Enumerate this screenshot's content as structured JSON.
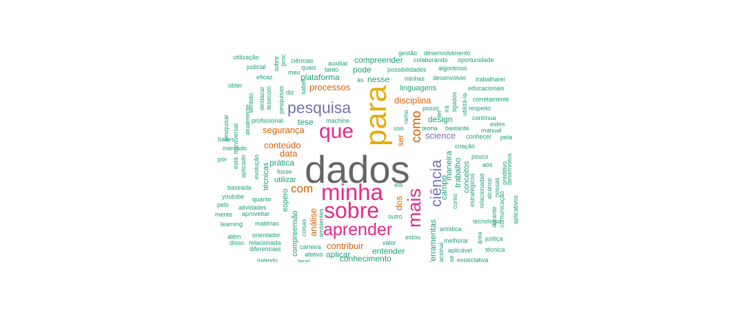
{
  "colors": {
    "teal": "#1b9e77",
    "orange": "#d95f02",
    "purple": "#7570b3",
    "pink": "#e7298a",
    "gold": "#e6ab02",
    "grey": "#666666"
  },
  "words": [
    {
      "text": "dados",
      "color": "grey"
    },
    {
      "text": "para",
      "color": "gold"
    },
    {
      "text": "minha",
      "color": "pink"
    },
    {
      "text": "sobre",
      "color": "pink"
    },
    {
      "text": "que",
      "color": "pink"
    },
    {
      "text": "aprender",
      "color": "pink"
    },
    {
      "text": "mais",
      "color": "pink"
    },
    {
      "text": "pesquisa",
      "color": "purple"
    },
    {
      "text": "ciência",
      "color": "purple"
    },
    {
      "text": "como",
      "color": "orange"
    },
    {
      "text": "com",
      "color": "orange"
    },
    {
      "text": "disciplina",
      "color": "orange"
    },
    {
      "text": "segurança",
      "color": "orange"
    },
    {
      "text": "processos",
      "color": "orange"
    },
    {
      "text": "conteúdo",
      "color": "orange"
    },
    {
      "text": "análise",
      "color": "orange"
    },
    {
      "text": "data",
      "color": "orange"
    },
    {
      "text": "dos",
      "color": "orange"
    },
    {
      "text": "contribuir",
      "color": "orange"
    },
    {
      "text": "ser",
      "color": "orange"
    },
    {
      "text": "science",
      "color": "purple"
    },
    {
      "text": "plataforma",
      "color": "teal"
    },
    {
      "text": "compreender",
      "color": "teal"
    },
    {
      "text": "pode",
      "color": "teal"
    },
    {
      "text": "nesse",
      "color": "teal"
    },
    {
      "text": "linguagens",
      "color": "teal"
    },
    {
      "text": "design",
      "color": "teal"
    },
    {
      "text": "tese",
      "color": "teal"
    },
    {
      "text": "prática",
      "color": "teal"
    },
    {
      "text": "utilizar",
      "color": "teal"
    },
    {
      "text": "técnicas",
      "color": "teal"
    },
    {
      "text": "espero",
      "color": "teal"
    },
    {
      "text": "compreensão",
      "color": "teal"
    },
    {
      "text": "aplicar",
      "color": "teal"
    },
    {
      "text": "entender",
      "color": "teal"
    },
    {
      "text": "conhecimento",
      "color": "teal"
    },
    {
      "text": "ferramentas",
      "color": "teal"
    },
    {
      "text": "trabalho",
      "color": "teal"
    },
    {
      "text": "maneira",
      "color": "teal"
    },
    {
      "text": "campo",
      "color": "teal"
    },
    {
      "text": "conceitos",
      "color": "teal"
    },
    {
      "text": "curso",
      "color": "teal"
    },
    {
      "text": "utilização",
      "color": "teal"
    },
    {
      "text": "judicial",
      "color": "teal"
    },
    {
      "text": "obter",
      "color": "teal"
    },
    {
      "text": "eficaz",
      "color": "teal"
    },
    {
      "text": "ciências",
      "color": "teal"
    },
    {
      "text": "auxiliar",
      "color": "teal"
    },
    {
      "text": "quais",
      "color": "teal"
    },
    {
      "text": "tanto",
      "color": "teal"
    },
    {
      "text": "colaborando",
      "color": "teal"
    },
    {
      "text": "oportunidade",
      "color": "teal"
    },
    {
      "text": "possibilidades",
      "color": "teal"
    },
    {
      "text": "algoritmos",
      "color": "teal"
    },
    {
      "text": "meu",
      "color": "teal"
    },
    {
      "text": "às",
      "color": "teal"
    },
    {
      "text": "minhas",
      "color": "teal"
    },
    {
      "text": "desenvolver",
      "color": "teal"
    },
    {
      "text": "trabalharei",
      "color": "teal"
    },
    {
      "text": "educacionais",
      "color": "teal"
    },
    {
      "text": "corretamente",
      "color": "teal"
    },
    {
      "text": "respeito",
      "color": "teal"
    },
    {
      "text": "contínua",
      "color": "teal"
    },
    {
      "text": "estes",
      "color": "teal"
    },
    {
      "text": "manual",
      "color": "teal"
    },
    {
      "text": "pela",
      "color": "teal"
    },
    {
      "text": "conhecer",
      "color": "teal"
    },
    {
      "text": "bastante",
      "color": "teal"
    },
    {
      "text": "teoria",
      "color": "teal"
    },
    {
      "text": "posso",
      "color": "teal"
    },
    {
      "text": "uso",
      "color": "teal"
    },
    {
      "text": "machine",
      "color": "teal"
    },
    {
      "text": "diz",
      "color": "teal"
    },
    {
      "text": "profissional",
      "color": "teal"
    },
    {
      "text": "bases",
      "color": "teal"
    },
    {
      "text": "mercado",
      "color": "teal"
    },
    {
      "text": "por",
      "color": "teal"
    },
    {
      "text": "fosse",
      "color": "teal"
    },
    {
      "text": "baseada",
      "color": "teal"
    },
    {
      "text": "youtube",
      "color": "teal"
    },
    {
      "text": "quanto",
      "color": "teal"
    },
    {
      "text": "pelo",
      "color": "teal"
    },
    {
      "text": "atividades",
      "color": "teal"
    },
    {
      "text": "mente",
      "color": "teal"
    },
    {
      "text": "aproveitar",
      "color": "teal"
    },
    {
      "text": "learning",
      "color": "teal"
    },
    {
      "text": "matérias",
      "color": "teal"
    },
    {
      "text": "orientador",
      "color": "teal"
    },
    {
      "text": "além",
      "color": "teal"
    },
    {
      "text": "disso",
      "color": "teal"
    },
    {
      "text": "relacionada",
      "color": "teal"
    },
    {
      "text": "diferenciais",
      "color": "teal"
    },
    {
      "text": "método",
      "color": "teal"
    },
    {
      "text": "carreira",
      "color": "teal"
    },
    {
      "text": "afetivo",
      "color": "teal"
    },
    {
      "text": "valor",
      "color": "teal"
    },
    {
      "text": "estou",
      "color": "teal"
    },
    {
      "text": "melhorar",
      "color": "teal"
    },
    {
      "text": "aplicável",
      "color": "teal"
    },
    {
      "text": "justiça",
      "color": "teal"
    },
    {
      "text": "técnica",
      "color": "teal"
    },
    {
      "text": "expectativa",
      "color": "teal"
    },
    {
      "text": "artística",
      "color": "teal"
    },
    {
      "text": "tecnologia",
      "color": "teal"
    },
    {
      "text": "criação",
      "color": "teal"
    },
    {
      "text": "pouco",
      "color": "teal"
    },
    {
      "text": "aos",
      "color": "teal"
    },
    {
      "text": "outro",
      "color": "teal"
    },
    {
      "text": "ela",
      "color": "teal"
    },
    {
      "text": "pesquisar",
      "color": "teal"
    },
    {
      "text": "transversal",
      "color": "teal"
    },
    {
      "text": "atualmente",
      "color": "teal"
    },
    {
      "text": "sentido",
      "color": "teal"
    },
    {
      "text": "destacar",
      "color": "teal"
    },
    {
      "text": "tesecom",
      "color": "teal"
    },
    {
      "text": "pesquisas",
      "color": "teal"
    },
    {
      "text": "está",
      "color": "teal"
    },
    {
      "text": "aplicado",
      "color": "teal"
    },
    {
      "text": "evolução",
      "color": "teal"
    },
    {
      "text": "coisas",
      "color": "teal"
    },
    {
      "text": "ambientes",
      "color": "teal"
    },
    {
      "text": "ramo",
      "color": "teal"
    },
    {
      "text": "ter",
      "color": "teal"
    },
    {
      "text": "irá",
      "color": "teal"
    },
    {
      "text": "ligados",
      "color": "teal"
    },
    {
      "text": "utilizá-la",
      "color": "teal"
    },
    {
      "text": "estratégicos",
      "color": "teal"
    },
    {
      "text": "relacionadas",
      "color": "teal"
    },
    {
      "text": "alcance",
      "color": "teal"
    },
    {
      "text": "nossas",
      "color": "teal"
    },
    {
      "text": "preditivo",
      "color": "teal"
    },
    {
      "text": "durante",
      "color": "teal"
    },
    {
      "text": "comunicação",
      "color": "teal"
    },
    {
      "text": "desenvolva",
      "color": "teal"
    },
    {
      "text": "aplicativos",
      "color": "teal"
    },
    {
      "text": "área",
      "color": "teal"
    },
    {
      "text": "gestão",
      "color": "teal"
    },
    {
      "text": "desenvolvimento",
      "color": "teal"
    },
    {
      "text": "saber",
      "color": "teal"
    },
    {
      "text": "terei",
      "color": "teal"
    },
    {
      "text": "nacional",
      "color": "teal"
    },
    {
      "text": "se",
      "color": "teal"
    },
    {
      "text": "sobre",
      "color": "teal"
    },
    {
      "text": "proc",
      "color": "teal"
    }
  ]
}
